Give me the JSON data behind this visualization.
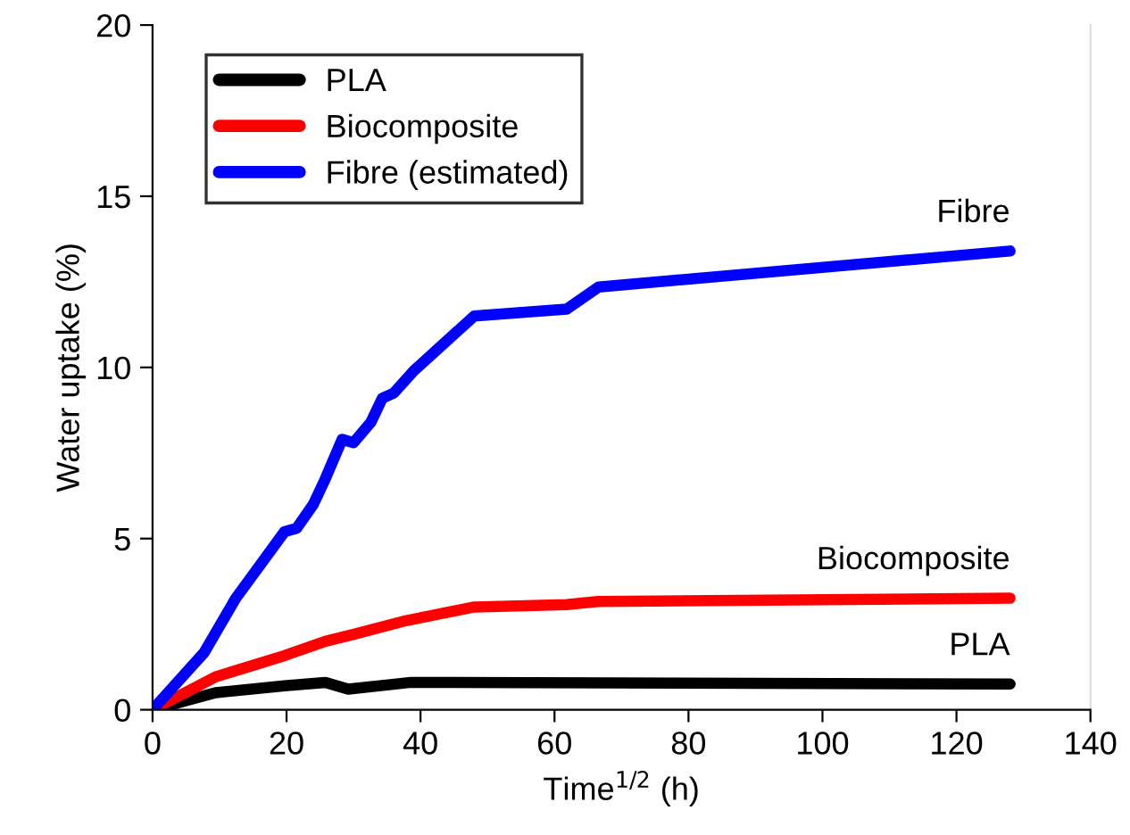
{
  "chart_data": {
    "type": "line",
    "xlabel": "Time$^{1/2}$ (h)",
    "ylabel": "Water uptake (%)",
    "xlim": [
      0,
      140
    ],
    "ylim": [
      0,
      20
    ],
    "xticks": [
      0,
      20,
      40,
      60,
      80,
      100,
      120,
      140
    ],
    "yticks": [
      0,
      5,
      10,
      15,
      20
    ],
    "grid": false,
    "legend": "top left",
    "marker": "none",
    "line_style": "solid",
    "series": [
      {
        "name": "PLA",
        "color": "#000000",
        "x": [
          0,
          9.4,
          19.7,
          25.8,
          29.2,
          38.6,
          128
        ],
        "values": [
          0,
          0.5,
          0.7,
          0.8,
          0.6,
          0.8,
          0.75
        ]
      },
      {
        "name": "Biocomposite",
        "color": "#ff0000",
        "x": [
          0,
          9.4,
          19.7,
          25.8,
          30,
          37.8,
          48,
          61.8,
          66.5,
          128
        ],
        "values": [
          0,
          0.96,
          1.58,
          2.0,
          2.2,
          2.6,
          3.0,
          3.07,
          3.16,
          3.26
        ]
      },
      {
        "name": "Fibre (estimated)",
        "color": "#0000ff",
        "x": [
          0,
          7.7,
          12.4,
          19.7,
          21.5,
          24,
          25.8,
          28.3,
          30,
          32.6,
          34.3,
          36,
          39,
          48,
          61.8,
          66.6,
          128
        ],
        "values": [
          0,
          1.67,
          3.25,
          5.2,
          5.3,
          6.0,
          6.75,
          7.9,
          7.8,
          8.4,
          9.1,
          9.25,
          9.9,
          11.5,
          11.7,
          12.35,
          13.4
        ]
      }
    ],
    "annotations": [
      "PLA",
      "Biocomposite",
      "Fibre"
    ]
  }
}
